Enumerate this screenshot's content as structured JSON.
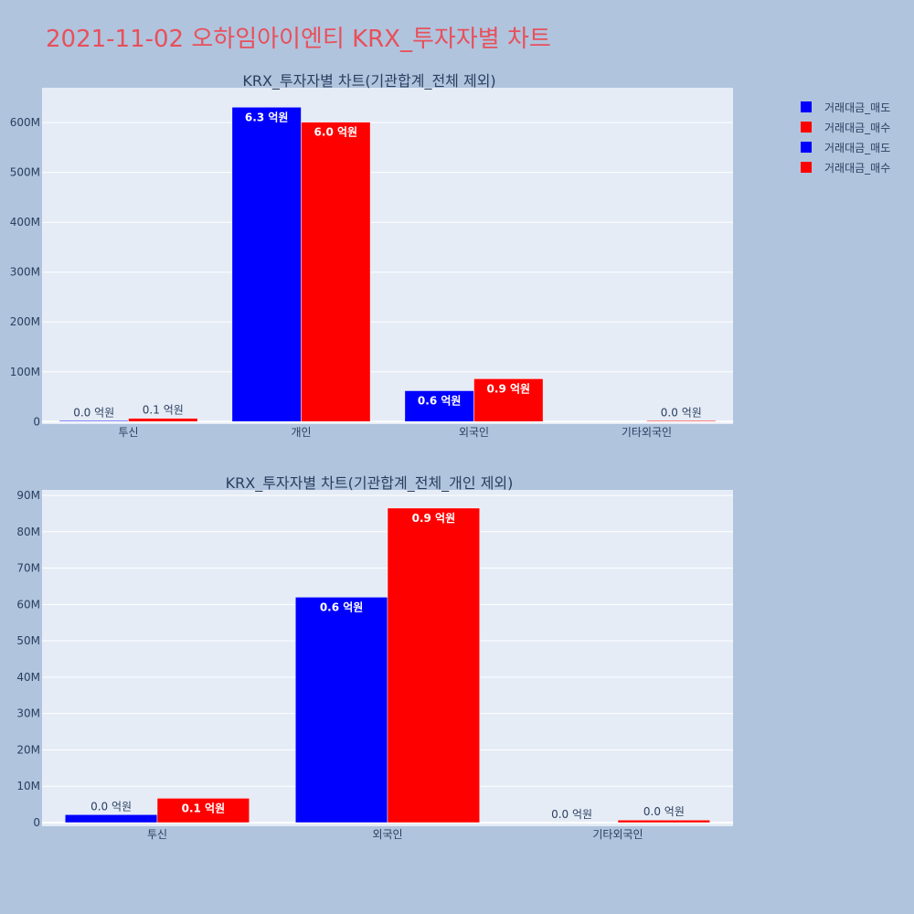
{
  "title": "2021-11-02 오하임아이엔티 KRX_투자자별 차트",
  "colors": {
    "sell": "#0000ff",
    "buy": "#ff0000",
    "plot_bg": "#e5ecf6",
    "page_bg": "#b0c4de",
    "title": "#e8505b"
  },
  "legend": [
    {
      "label": "거래대금_매도",
      "color": "#0000ff"
    },
    {
      "label": "거래대금_매수",
      "color": "#ff0000"
    },
    {
      "label": "거래대금_매도",
      "color": "#0000ff"
    },
    {
      "label": "거래대금_매수",
      "color": "#ff0000"
    }
  ],
  "chart_data": [
    {
      "type": "bar",
      "title": "KRX_투자자별 차트(기관합계_전체 제외)",
      "categories": [
        "투신",
        "개인",
        "외국인",
        "기타외국인"
      ],
      "series": [
        {
          "name": "거래대금_매도",
          "values": [
            1800000,
            631000000,
            62000000,
            0
          ],
          "labels": [
            "0.0 억원",
            "6.3 억원",
            "0.6 억원",
            ""
          ]
        },
        {
          "name": "거래대금_매수",
          "values": [
            6700000,
            601000000,
            86000000,
            600000
          ],
          "labels": [
            "0.1 억원",
            "6.0 억원",
            "0.9 억원",
            "0.0 억원"
          ]
        }
      ],
      "yticks": [
        "0",
        "100M",
        "200M",
        "300M",
        "400M",
        "500M",
        "600M"
      ],
      "ylim": [
        -5000000,
        670000000
      ],
      "grid": true,
      "legend_position": "top-right"
    },
    {
      "type": "bar",
      "title": "KRX_투자자별 차트(기관합계_전체_개인 제외)",
      "categories": [
        "투신",
        "외국인",
        "기타외국인"
      ],
      "series": [
        {
          "name": "거래대금_매도",
          "values": [
            2200000,
            62000000,
            0
          ],
          "labels": [
            "0.0 억원",
            "0.6 억원",
            "0.0 억원"
          ]
        },
        {
          "name": "거래대금_매수",
          "values": [
            6700000,
            86500000,
            700000
          ],
          "labels": [
            "0.1 억원",
            "0.9 억원",
            "0.0 억원"
          ]
        }
      ],
      "yticks": [
        "0",
        "10M",
        "20M",
        "30M",
        "40M",
        "50M",
        "60M",
        "70M",
        "80M",
        "90M"
      ],
      "ylim": [
        -1000000,
        91500000
      ],
      "grid": true
    }
  ]
}
